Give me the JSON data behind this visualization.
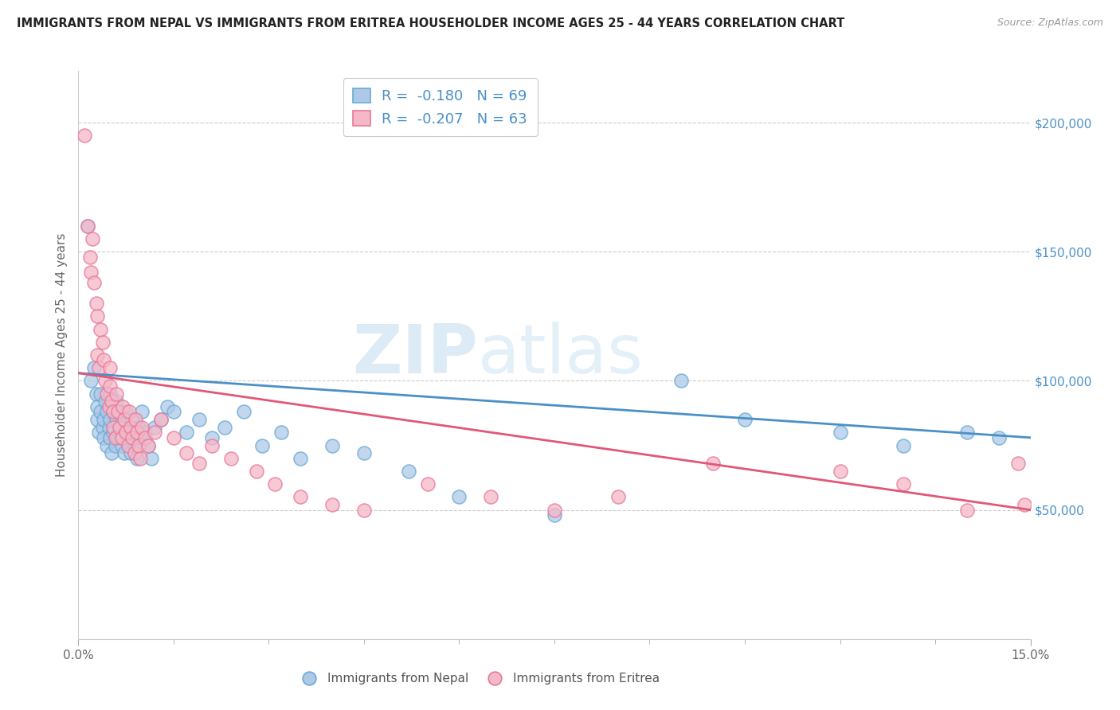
{
  "title": "IMMIGRANTS FROM NEPAL VS IMMIGRANTS FROM ERITREA HOUSEHOLDER INCOME AGES 25 - 44 YEARS CORRELATION CHART",
  "source": "Source: ZipAtlas.com",
  "ylabel": "Householder Income Ages 25 - 44 years",
  "xlim": [
    0.0,
    15.0
  ],
  "ylim": [
    0,
    220000
  ],
  "yticks": [
    50000,
    100000,
    150000,
    200000
  ],
  "ytick_labels": [
    "$50,000",
    "$100,000",
    "$150,000",
    "$200,000"
  ],
  "nepal_color": "#aec9e8",
  "eritrea_color": "#f5b8c8",
  "nepal_edge_color": "#6aaad4",
  "eritrea_edge_color": "#e87898",
  "nepal_line_color": "#4a90c8",
  "eritrea_line_color": "#e05878",
  "legend_label_nepal": "R =  -0.180   N = 69",
  "legend_label_eritrea": "R =  -0.207   N = 63",
  "watermark_zip": "ZIP",
  "watermark_atlas": "atlas",
  "nepal_x": [
    0.15,
    0.2,
    0.25,
    0.28,
    0.3,
    0.3,
    0.32,
    0.35,
    0.35,
    0.38,
    0.4,
    0.4,
    0.42,
    0.45,
    0.45,
    0.48,
    0.5,
    0.5,
    0.5,
    0.52,
    0.55,
    0.55,
    0.58,
    0.6,
    0.6,
    0.62,
    0.65,
    0.65,
    0.68,
    0.7,
    0.7,
    0.72,
    0.75,
    0.78,
    0.8,
    0.82,
    0.85,
    0.88,
    0.9,
    0.92,
    0.95,
    0.98,
    1.0,
    1.05,
    1.1,
    1.15,
    1.2,
    1.3,
    1.4,
    1.5,
    1.7,
    1.9,
    2.1,
    2.3,
    2.6,
    2.9,
    3.2,
    3.5,
    4.0,
    4.5,
    5.2,
    6.0,
    7.5,
    9.5,
    10.5,
    12.0,
    13.0,
    14.0,
    14.5
  ],
  "nepal_y": [
    160000,
    100000,
    105000,
    95000,
    90000,
    85000,
    80000,
    95000,
    88000,
    82000,
    85000,
    78000,
    92000,
    88000,
    75000,
    82000,
    95000,
    85000,
    78000,
    72000,
    88000,
    80000,
    75000,
    92000,
    85000,
    78000,
    88000,
    80000,
    75000,
    85000,
    78000,
    72000,
    88000,
    82000,
    78000,
    72000,
    85000,
    80000,
    75000,
    70000,
    82000,
    78000,
    88000,
    80000,
    75000,
    70000,
    82000,
    85000,
    90000,
    88000,
    80000,
    85000,
    78000,
    82000,
    88000,
    75000,
    80000,
    70000,
    75000,
    72000,
    65000,
    55000,
    48000,
    100000,
    85000,
    80000,
    75000,
    80000,
    78000
  ],
  "eritrea_x": [
    0.1,
    0.15,
    0.18,
    0.2,
    0.22,
    0.25,
    0.28,
    0.3,
    0.3,
    0.32,
    0.35,
    0.38,
    0.4,
    0.42,
    0.45,
    0.48,
    0.5,
    0.5,
    0.52,
    0.55,
    0.55,
    0.58,
    0.6,
    0.62,
    0.65,
    0.68,
    0.7,
    0.72,
    0.75,
    0.78,
    0.8,
    0.82,
    0.85,
    0.88,
    0.9,
    0.92,
    0.95,
    0.98,
    1.0,
    1.05,
    1.1,
    1.2,
    1.3,
    1.5,
    1.7,
    1.9,
    2.1,
    2.4,
    2.8,
    3.1,
    3.5,
    4.0,
    4.5,
    5.5,
    6.5,
    7.5,
    8.5,
    10.0,
    12.0,
    13.0,
    14.0,
    14.8,
    14.9
  ],
  "eritrea_y": [
    195000,
    160000,
    148000,
    142000,
    155000,
    138000,
    130000,
    125000,
    110000,
    105000,
    120000,
    115000,
    108000,
    100000,
    95000,
    90000,
    105000,
    98000,
    92000,
    88000,
    82000,
    78000,
    95000,
    88000,
    82000,
    78000,
    90000,
    85000,
    80000,
    75000,
    88000,
    82000,
    78000,
    72000,
    85000,
    80000,
    75000,
    70000,
    82000,
    78000,
    75000,
    80000,
    85000,
    78000,
    72000,
    68000,
    75000,
    70000,
    65000,
    60000,
    55000,
    52000,
    50000,
    60000,
    55000,
    50000,
    55000,
    68000,
    65000,
    60000,
    50000,
    68000,
    52000
  ]
}
